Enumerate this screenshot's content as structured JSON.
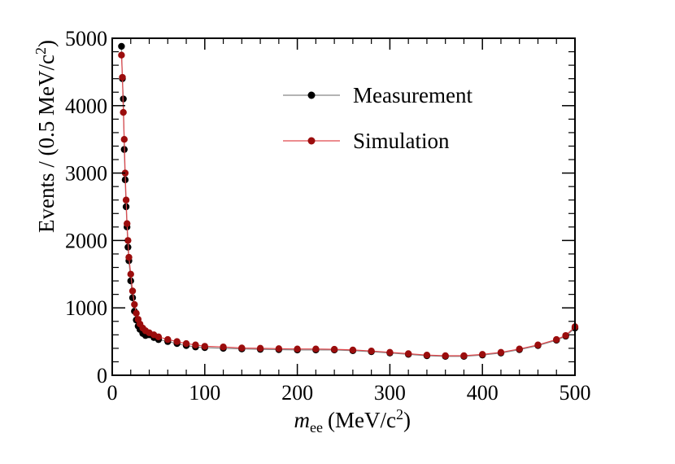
{
  "chart_data": {
    "type": "scatter",
    "title": "",
    "xlabel": {
      "symbol": "m",
      "subscript": "ee",
      "unit_pre": "(MeV/c",
      "unit_sup": "2",
      "unit_post": ")"
    },
    "ylabel": {
      "text": "Events / (0.5 MeV/c",
      "sup": "2",
      "post": ")"
    },
    "xlim": [
      0,
      500
    ],
    "ylim": [
      0,
      5000
    ],
    "x_ticks": [
      "0",
      "100",
      "200",
      "300",
      "400",
      "500"
    ],
    "y_ticks": [
      "0",
      "1000",
      "2000",
      "3000",
      "4000",
      "5000"
    ],
    "legend_position": "top-right",
    "series": [
      {
        "name": "Measurement",
        "color": "#000000",
        "line_color": "#888888",
        "points": [
          [
            10,
            4880
          ],
          [
            11,
            4400
          ],
          [
            12,
            4100
          ],
          [
            13,
            3350
          ],
          [
            14,
            2900
          ],
          [
            15,
            2500
          ],
          [
            16,
            2200
          ],
          [
            17,
            1900
          ],
          [
            18,
            1700
          ],
          [
            20,
            1400
          ],
          [
            22,
            1150
          ],
          [
            24,
            950
          ],
          [
            26,
            820
          ],
          [
            28,
            730
          ],
          [
            30,
            680
          ],
          [
            33,
            620
          ],
          [
            36,
            590
          ],
          [
            40,
            600
          ],
          [
            45,
            560
          ],
          [
            50,
            530
          ],
          [
            60,
            500
          ],
          [
            70,
            470
          ],
          [
            80,
            440
          ],
          [
            90,
            420
          ],
          [
            100,
            410
          ],
          [
            120,
            400
          ],
          [
            140,
            390
          ],
          [
            160,
            385
          ],
          [
            180,
            380
          ],
          [
            200,
            375
          ],
          [
            220,
            375
          ],
          [
            240,
            375
          ],
          [
            260,
            365
          ],
          [
            280,
            350
          ],
          [
            300,
            330
          ],
          [
            320,
            310
          ],
          [
            340,
            290
          ],
          [
            360,
            280
          ],
          [
            380,
            280
          ],
          [
            400,
            300
          ],
          [
            420,
            330
          ],
          [
            440,
            380
          ],
          [
            460,
            440
          ],
          [
            480,
            520
          ],
          [
            490,
            580
          ],
          [
            500,
            700
          ]
        ]
      },
      {
        "name": "Simulation",
        "color": "#9b0d0d",
        "line_color": "#e0474c",
        "points": [
          [
            10,
            4750
          ],
          [
            11,
            4420
          ],
          [
            12,
            3900
          ],
          [
            13,
            3500
          ],
          [
            14,
            3000
          ],
          [
            15,
            2600
          ],
          [
            16,
            2250
          ],
          [
            17,
            2000
          ],
          [
            18,
            1750
          ],
          [
            20,
            1500
          ],
          [
            22,
            1250
          ],
          [
            24,
            1050
          ],
          [
            26,
            920
          ],
          [
            28,
            830
          ],
          [
            30,
            760
          ],
          [
            33,
            700
          ],
          [
            36,
            660
          ],
          [
            40,
            630
          ],
          [
            45,
            600
          ],
          [
            50,
            570
          ],
          [
            60,
            530
          ],
          [
            70,
            500
          ],
          [
            80,
            470
          ],
          [
            90,
            450
          ],
          [
            100,
            430
          ],
          [
            120,
            420
          ],
          [
            140,
            405
          ],
          [
            160,
            400
          ],
          [
            180,
            395
          ],
          [
            200,
            390
          ],
          [
            220,
            390
          ],
          [
            240,
            385
          ],
          [
            260,
            375
          ],
          [
            280,
            360
          ],
          [
            300,
            340
          ],
          [
            320,
            320
          ],
          [
            340,
            300
          ],
          [
            360,
            290
          ],
          [
            380,
            290
          ],
          [
            400,
            310
          ],
          [
            420,
            340
          ],
          [
            440,
            390
          ],
          [
            460,
            450
          ],
          [
            480,
            530
          ],
          [
            490,
            590
          ],
          [
            500,
            720
          ]
        ]
      }
    ]
  }
}
